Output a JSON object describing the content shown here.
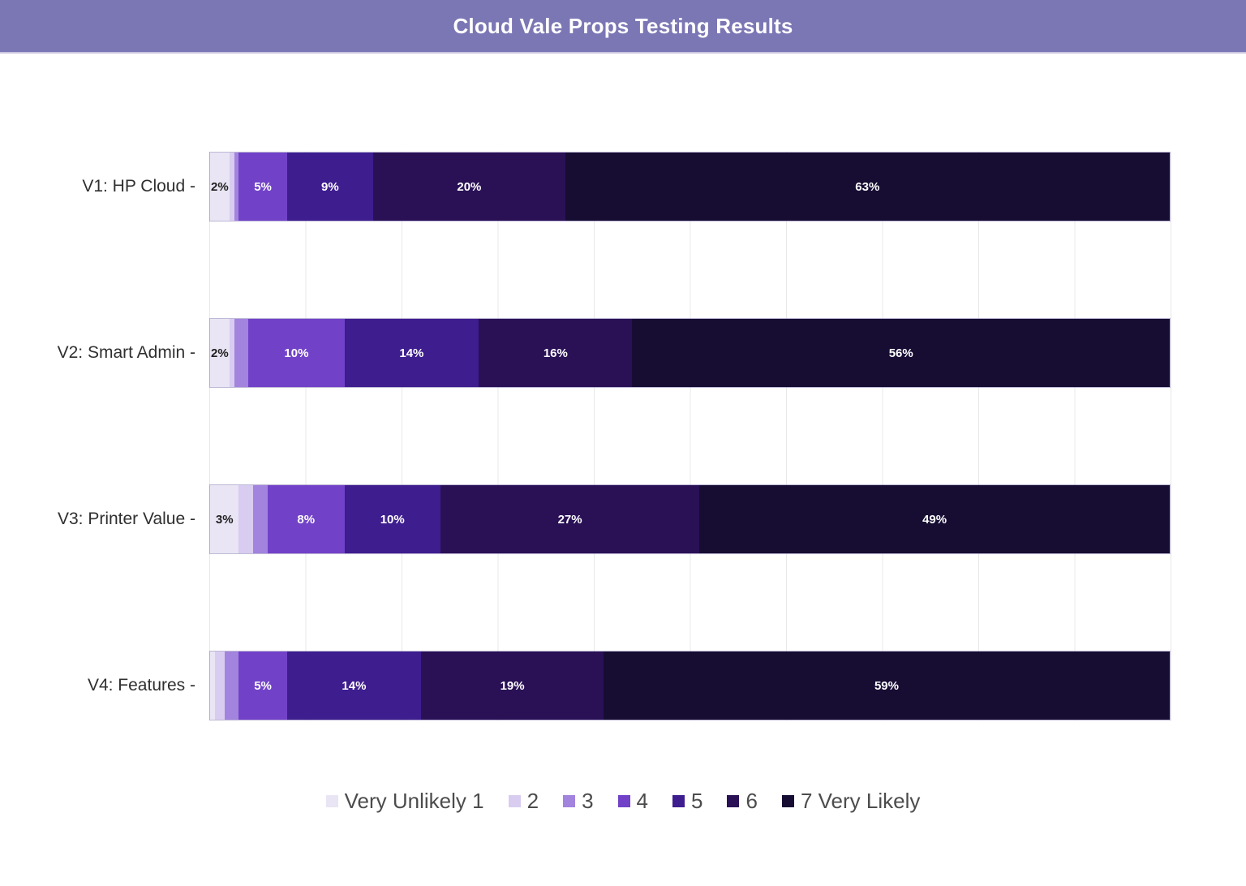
{
  "title": "Cloud Vale Props Testing Results",
  "colors": {
    "banner": "#7b76b4",
    "banner_text": "#ffffff",
    "gridline": "#e8e8e8",
    "axis_text": "#2f2f2f",
    "legend_text": "#4c4c4c",
    "label_dark": "#1f1f1f",
    "label_light": "#ffffff"
  },
  "chart_data": {
    "type": "bar",
    "subtype": "horizontal-stacked-percent",
    "title": "Cloud Vale Props Testing Results",
    "categories": [
      "V1: HP Cloud",
      "V2: Smart Admin",
      "V3: Printer Value",
      "V4: Features"
    ],
    "tick_suffix": " -",
    "xlim": [
      0,
      100
    ],
    "grid_interval_pct": 10,
    "grid": true,
    "legend_position": "bottom",
    "scale_labels": [
      "Very Unlikely 1",
      "2",
      "3",
      "4",
      "5",
      "6",
      "7 Very Likely"
    ],
    "scale_colors": [
      "#e9e5f4",
      "#d8ccf0",
      "#a283de",
      "#7142c8",
      "#3e1d8f",
      "#2a1156",
      "#170d33"
    ],
    "rows": [
      {
        "category": "V1: HP Cloud",
        "values": [
          2,
          0.5,
          0.5,
          5,
          9,
          20,
          63
        ],
        "labels": [
          "2%",
          "",
          "",
          "5%",
          "9%",
          "20%",
          "63%"
        ]
      },
      {
        "category": "V2: Smart Admin",
        "values": [
          2,
          0.5,
          1.5,
          10,
          14,
          16,
          56
        ],
        "labels": [
          "2%",
          "",
          "",
          "10%",
          "14%",
          "16%",
          "56%"
        ]
      },
      {
        "category": "V3: Printer Value",
        "values": [
          3,
          1.5,
          1.5,
          8,
          10,
          27,
          49
        ],
        "labels": [
          "3%",
          "",
          "",
          "8%",
          "10%",
          "27%",
          "49%"
        ]
      },
      {
        "category": "V4: Features",
        "values": [
          0.5,
          1,
          1.5,
          5,
          14,
          19,
          59
        ],
        "labels": [
          "",
          "",
          "",
          "5%",
          "14%",
          "19%",
          "59%"
        ]
      }
    ]
  }
}
